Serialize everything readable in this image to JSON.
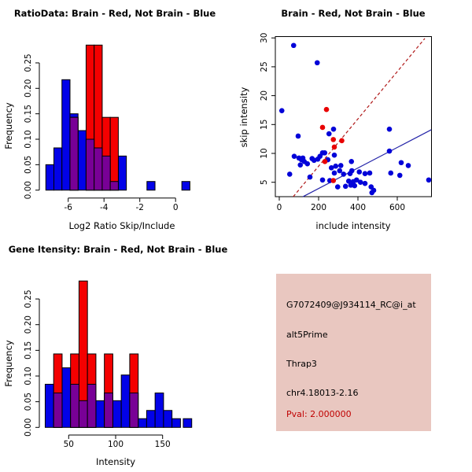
{
  "colors": {
    "blue": "#0202E8",
    "red": "#F40000",
    "purple": "#780096",
    "blue_point": "#0202D8",
    "red_point": "#E80000",
    "blue_line": "#2424A8",
    "red_line": "#B01818",
    "panel_bg": "#E9C7C0",
    "pval_text": "#C00000",
    "axis": "#000000"
  },
  "chart_data": [
    {
      "type": "bar",
      "subtype": "overlaid-histogram",
      "title": "RatioData: Brain - Red, Not Brain - Blue",
      "xlabel": "Log2 Ratio Skip/Include",
      "ylabel": "Frequency",
      "x_tick_values": [
        -6,
        -4,
        -2,
        0
      ],
      "x_tick_labels": [
        "-6",
        "-4",
        "-2",
        "0"
      ],
      "y_tick_values": [
        0,
        0.05,
        0.1,
        0.15,
        0.2,
        0.25
      ],
      "y_tick_labels": [
        "0.00",
        "0.05",
        "0.10",
        "0.15",
        "0.20",
        "0.25"
      ],
      "xlim": [
        -7.6,
        0.8
      ],
      "ylim": [
        0,
        0.29
      ],
      "bin_width": 0.45,
      "legend_note": "Brain - Red, Not Brain - Blue, overlap shown purple",
      "series": [
        {
          "name": "not_brain",
          "color_key": "blue",
          "bars": [
            [
              -7.25,
              0.05
            ],
            [
              -6.8,
              0.083
            ],
            [
              -6.35,
              0.217
            ],
            [
              -5.9,
              0.15
            ],
            [
              -5.45,
              0.117
            ],
            [
              -5.0,
              0.1
            ],
            [
              -4.55,
              0.083
            ],
            [
              -4.1,
              0.067
            ],
            [
              -3.65,
              0.017
            ],
            [
              -3.2,
              0.067
            ],
            [
              -1.6,
              0.017
            ],
            [
              0.35,
              0.017
            ]
          ]
        },
        {
          "name": "brain",
          "color_key": "red",
          "bars": [
            [
              -5.9,
              0.143
            ],
            [
              -5.0,
              0.285
            ],
            [
              -4.55,
              0.285
            ],
            [
              -4.1,
              0.143
            ],
            [
              -3.65,
              0.143
            ]
          ]
        },
        {
          "name": "overlap",
          "color_key": "purple",
          "bars": [
            [
              -5.9,
              0.143
            ],
            [
              -5.0,
              0.1
            ],
            [
              -4.55,
              0.083
            ],
            [
              -4.1,
              0.067
            ],
            [
              -3.65,
              0.017
            ]
          ]
        }
      ]
    },
    {
      "type": "scatter",
      "title": "Brain - Red, Not Brain - Blue",
      "xlabel": "include intensity",
      "ylabel": "skip intensity",
      "x_tick_values": [
        0,
        200,
        400,
        600
      ],
      "x_tick_labels": [
        "0",
        "200",
        "400",
        "600"
      ],
      "y_tick_values": [
        5,
        10,
        15,
        20,
        25,
        30
      ],
      "y_tick_labels": [
        "5",
        "10",
        "15",
        "20",
        "25",
        "30"
      ],
      "xlim": [
        -20,
        774
      ],
      "ylim": [
        2.5,
        30
      ],
      "series": [
        {
          "name": "not_brain",
          "color_key": "blue_point",
          "points": [
            [
              73,
              28.7
            ],
            [
              193,
              25.7
            ],
            [
              13,
              17.4
            ],
            [
              96,
              13.0
            ],
            [
              276,
              14.2
            ],
            [
              253,
              13.4
            ],
            [
              560,
              14.2
            ],
            [
              560,
              10.4
            ],
            [
              220,
              10.1
            ],
            [
              231,
              10.1
            ],
            [
              76,
              9.5
            ],
            [
              280,
              9.7
            ],
            [
              120,
              9.2
            ],
            [
              167,
              9.1
            ],
            [
              196,
              9.0
            ],
            [
              207,
              9.5
            ],
            [
              100,
              9.2
            ],
            [
              113,
              8.9
            ],
            [
              127,
              8.6
            ],
            [
              143,
              8.2
            ],
            [
              177,
              8.8
            ],
            [
              247,
              8.9
            ],
            [
              367,
              8.6
            ],
            [
              620,
              8.4
            ],
            [
              656,
              7.9
            ],
            [
              107,
              8.0
            ],
            [
              287,
              7.8
            ],
            [
              313,
              7.9
            ],
            [
              265,
              7.5
            ],
            [
              369,
              7.0
            ],
            [
              307,
              7.0
            ],
            [
              407,
              6.8
            ],
            [
              436,
              6.5
            ],
            [
              460,
              6.6
            ],
            [
              53,
              6.4
            ],
            [
              567,
              6.6
            ],
            [
              613,
              6.2
            ],
            [
              156,
              5.9
            ],
            [
              327,
              6.4
            ],
            [
              360,
              6.5
            ],
            [
              280,
              6.6
            ],
            [
              220,
              5.4
            ],
            [
              257,
              5.3
            ],
            [
              353,
              5.2
            ],
            [
              376,
              5.1
            ],
            [
              393,
              5.4
            ],
            [
              413,
              5.0
            ],
            [
              436,
              4.8
            ],
            [
              364,
              4.5
            ],
            [
              383,
              4.4
            ],
            [
              337,
              4.3
            ],
            [
              297,
              4.2
            ],
            [
              760,
              5.4
            ],
            [
              467,
              4.2
            ],
            [
              480,
              3.6
            ],
            [
              471,
              3.2
            ]
          ]
        },
        {
          "name": "brain",
          "color_key": "red_point",
          "points": [
            [
              240,
              17.6
            ],
            [
              220,
              14.5
            ],
            [
              275,
              12.4
            ],
            [
              318,
              12.2
            ],
            [
              280,
              11.1
            ],
            [
              232,
              8.6
            ],
            [
              275,
              5.3
            ]
          ]
        }
      ],
      "lines": [
        {
          "name": "brain_fit",
          "color_key": "red_line",
          "dash": true,
          "from": [
            71,
            2.5
          ],
          "to": [
            740,
            29.9
          ]
        },
        {
          "name": "not_brain_fit",
          "color_key": "blue_line",
          "dash": false,
          "from": [
            120,
            2.5
          ],
          "to": [
            773,
            14.1
          ]
        }
      ]
    },
    {
      "type": "bar",
      "subtype": "overlaid-histogram",
      "title": "Gene Itensity: Brain - Red, Not Brain - Blue",
      "xlabel": "Intensity",
      "ylabel": "Frequency",
      "x_tick_values": [
        50,
        100,
        150
      ],
      "x_tick_labels": [
        "50",
        "100",
        "150"
      ],
      "y_tick_values": [
        0,
        0.05,
        0.1,
        0.15,
        0.2,
        0.25
      ],
      "y_tick_labels": [
        "0.00",
        "0.05",
        "0.10",
        "0.15",
        "0.20",
        "0.25"
      ],
      "xlim": [
        18,
        187
      ],
      "ylim": [
        0,
        0.29
      ],
      "bin_width": 9,
      "legend_note": "Brain - Red, Not Brain - Blue, overlap shown purple",
      "series": [
        {
          "name": "not_brain",
          "color_key": "blue",
          "bars": [
            [
              25,
              0.084
            ],
            [
              34,
              0.067
            ],
            [
              43,
              0.116
            ],
            [
              52,
              0.084
            ],
            [
              61,
              0.052
            ],
            [
              70,
              0.084
            ],
            [
              79,
              0.052
            ],
            [
              88,
              0.067
            ],
            [
              97,
              0.052
            ],
            [
              106,
              0.102
            ],
            [
              115,
              0.067
            ],
            [
              124,
              0.017
            ],
            [
              133,
              0.033
            ],
            [
              142,
              0.067
            ],
            [
              151,
              0.033
            ],
            [
              160,
              0.017
            ],
            [
              172,
              0.017
            ]
          ]
        },
        {
          "name": "brain",
          "color_key": "red",
          "bars": [
            [
              34,
              0.143
            ],
            [
              52,
              0.143
            ],
            [
              61,
              0.285
            ],
            [
              70,
              0.143
            ],
            [
              88,
              0.143
            ],
            [
              115,
              0.143
            ]
          ]
        },
        {
          "name": "overlap",
          "color_key": "purple",
          "bars": [
            [
              34,
              0.067
            ],
            [
              52,
              0.084
            ],
            [
              61,
              0.052
            ],
            [
              70,
              0.084
            ],
            [
              88,
              0.067
            ],
            [
              115,
              0.067
            ]
          ]
        }
      ]
    }
  ],
  "info_panel": {
    "probe_id": "G7072409@J934114_RC@i_at",
    "splice_type": "alt5Prime",
    "gene": "Thrap3",
    "location": "chr4.18013-2.16",
    "pval": "Pval: 2.000000"
  }
}
